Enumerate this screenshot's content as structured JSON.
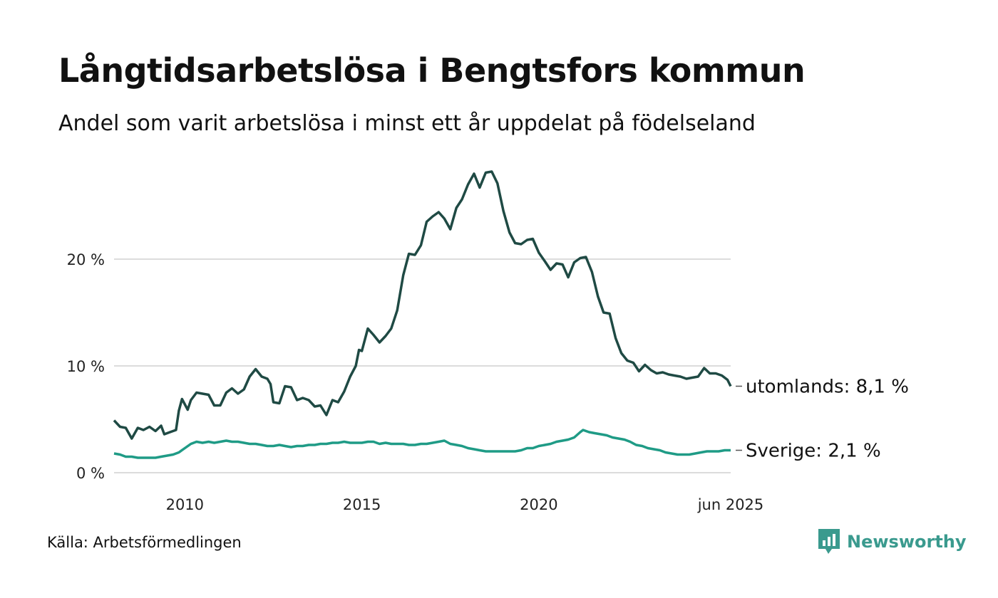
{
  "header": {
    "title": "Långtidsarbetslösa i Bengtsfors kommun",
    "subtitle": "Andel som varit arbetslösa i minst ett år uppdelat på födelseland"
  },
  "footer": {
    "source": "Källa: Arbetsförmedlingen",
    "brand": "Newsworthy",
    "brand_color": "#3a9a8e"
  },
  "chart_data": {
    "type": "line",
    "title": "Långtidsarbetslösa i Bengtsfors kommun",
    "subtitle": "Andel som varit arbetslösa i minst ett år uppdelat på födelseland",
    "x_ticks": [
      {
        "x": 2010,
        "label": "2010"
      },
      {
        "x": 2015,
        "label": "2015"
      },
      {
        "x": 2020,
        "label": "2020"
      },
      {
        "x": 2025.42,
        "label": "jun 2025"
      }
    ],
    "y_ticks": [
      {
        "y": 0,
        "label": "0 %"
      },
      {
        "y": 10,
        "label": "10 %"
      },
      {
        "y": 20,
        "label": "20 %"
      }
    ],
    "xlim": [
      2008.0,
      2025.42
    ],
    "ylim": [
      0,
      30
    ],
    "grid": true,
    "legend": "end-labels",
    "series": [
      {
        "name": "utomlands",
        "end_label": "utomlands: 8,1 %",
        "color": "#1f4a44",
        "points": [
          [
            2008.0,
            4.9
          ],
          [
            2008.17,
            4.3
          ],
          [
            2008.33,
            4.2
          ],
          [
            2008.5,
            3.2
          ],
          [
            2008.67,
            4.2
          ],
          [
            2008.83,
            4.0
          ],
          [
            2009.0,
            4.3
          ],
          [
            2009.17,
            3.9
          ],
          [
            2009.33,
            4.4
          ],
          [
            2009.42,
            3.6
          ],
          [
            2009.58,
            3.8
          ],
          [
            2009.75,
            4.0
          ],
          [
            2009.83,
            5.8
          ],
          [
            2009.92,
            6.9
          ],
          [
            2010.08,
            5.9
          ],
          [
            2010.17,
            6.8
          ],
          [
            2010.33,
            7.5
          ],
          [
            2010.5,
            7.4
          ],
          [
            2010.67,
            7.3
          ],
          [
            2010.83,
            6.3
          ],
          [
            2011.0,
            6.3
          ],
          [
            2011.17,
            7.5
          ],
          [
            2011.33,
            7.9
          ],
          [
            2011.5,
            7.4
          ],
          [
            2011.67,
            7.8
          ],
          [
            2011.83,
            9.0
          ],
          [
            2012.0,
            9.7
          ],
          [
            2012.17,
            9.0
          ],
          [
            2012.33,
            8.8
          ],
          [
            2012.42,
            8.3
          ],
          [
            2012.5,
            6.6
          ],
          [
            2012.67,
            6.5
          ],
          [
            2012.83,
            8.1
          ],
          [
            2013.0,
            8.0
          ],
          [
            2013.17,
            6.8
          ],
          [
            2013.33,
            7.0
          ],
          [
            2013.5,
            6.8
          ],
          [
            2013.67,
            6.2
          ],
          [
            2013.83,
            6.3
          ],
          [
            2014.0,
            5.4
          ],
          [
            2014.17,
            6.8
          ],
          [
            2014.33,
            6.6
          ],
          [
            2014.5,
            7.6
          ],
          [
            2014.67,
            9.0
          ],
          [
            2014.83,
            10.0
          ],
          [
            2014.92,
            11.5
          ],
          [
            2015.0,
            11.4
          ],
          [
            2015.17,
            13.5
          ],
          [
            2015.33,
            12.9
          ],
          [
            2015.5,
            12.2
          ],
          [
            2015.67,
            12.8
          ],
          [
            2015.83,
            13.5
          ],
          [
            2016.0,
            15.2
          ],
          [
            2016.17,
            18.5
          ],
          [
            2016.33,
            20.5
          ],
          [
            2016.5,
            20.4
          ],
          [
            2016.67,
            21.3
          ],
          [
            2016.83,
            23.5
          ],
          [
            2017.0,
            24.0
          ],
          [
            2017.17,
            24.4
          ],
          [
            2017.33,
            23.8
          ],
          [
            2017.5,
            22.8
          ],
          [
            2017.67,
            24.8
          ],
          [
            2017.83,
            25.6
          ],
          [
            2018.0,
            27.0
          ],
          [
            2018.17,
            28.0
          ],
          [
            2018.33,
            26.7
          ],
          [
            2018.5,
            28.1
          ],
          [
            2018.67,
            28.2
          ],
          [
            2018.83,
            27.1
          ],
          [
            2019.0,
            24.5
          ],
          [
            2019.17,
            22.5
          ],
          [
            2019.33,
            21.5
          ],
          [
            2019.5,
            21.4
          ],
          [
            2019.67,
            21.8
          ],
          [
            2019.83,
            21.9
          ],
          [
            2020.0,
            20.6
          ],
          [
            2020.17,
            19.8
          ],
          [
            2020.33,
            19.0
          ],
          [
            2020.5,
            19.6
          ],
          [
            2020.67,
            19.5
          ],
          [
            2020.83,
            18.3
          ],
          [
            2021.0,
            19.7
          ],
          [
            2021.17,
            20.1
          ],
          [
            2021.33,
            20.2
          ],
          [
            2021.5,
            18.8
          ],
          [
            2021.67,
            16.5
          ],
          [
            2021.83,
            15.0
          ],
          [
            2022.0,
            14.9
          ],
          [
            2022.17,
            12.6
          ],
          [
            2022.33,
            11.2
          ],
          [
            2022.5,
            10.5
          ],
          [
            2022.67,
            10.3
          ],
          [
            2022.83,
            9.5
          ],
          [
            2023.0,
            10.1
          ],
          [
            2023.17,
            9.6
          ],
          [
            2023.33,
            9.3
          ],
          [
            2023.5,
            9.4
          ],
          [
            2023.67,
            9.2
          ],
          [
            2023.83,
            9.1
          ],
          [
            2024.0,
            9.0
          ],
          [
            2024.17,
            8.8
          ],
          [
            2024.33,
            8.9
          ],
          [
            2024.5,
            9.0
          ],
          [
            2024.67,
            9.8
          ],
          [
            2024.83,
            9.3
          ],
          [
            2025.0,
            9.3
          ],
          [
            2025.17,
            9.1
          ],
          [
            2025.33,
            8.7
          ],
          [
            2025.42,
            8.1
          ]
        ]
      },
      {
        "name": "Sverige",
        "end_label": "Sverige: 2,1 %",
        "color": "#1f9b86",
        "points": [
          [
            2008.0,
            1.8
          ],
          [
            2008.17,
            1.7
          ],
          [
            2008.33,
            1.5
          ],
          [
            2008.5,
            1.5
          ],
          [
            2008.67,
            1.4
          ],
          [
            2008.83,
            1.4
          ],
          [
            2009.0,
            1.4
          ],
          [
            2009.17,
            1.4
          ],
          [
            2009.33,
            1.5
          ],
          [
            2009.5,
            1.6
          ],
          [
            2009.67,
            1.7
          ],
          [
            2009.83,
            1.9
          ],
          [
            2010.0,
            2.3
          ],
          [
            2010.17,
            2.7
          ],
          [
            2010.33,
            2.9
          ],
          [
            2010.5,
            2.8
          ],
          [
            2010.67,
            2.9
          ],
          [
            2010.83,
            2.8
          ],
          [
            2011.0,
            2.9
          ],
          [
            2011.17,
            3.0
          ],
          [
            2011.33,
            2.9
          ],
          [
            2011.5,
            2.9
          ],
          [
            2011.67,
            2.8
          ],
          [
            2011.83,
            2.7
          ],
          [
            2012.0,
            2.7
          ],
          [
            2012.17,
            2.6
          ],
          [
            2012.33,
            2.5
          ],
          [
            2012.5,
            2.5
          ],
          [
            2012.67,
            2.6
          ],
          [
            2012.83,
            2.5
          ],
          [
            2013.0,
            2.4
          ],
          [
            2013.17,
            2.5
          ],
          [
            2013.33,
            2.5
          ],
          [
            2013.5,
            2.6
          ],
          [
            2013.67,
            2.6
          ],
          [
            2013.83,
            2.7
          ],
          [
            2014.0,
            2.7
          ],
          [
            2014.17,
            2.8
          ],
          [
            2014.33,
            2.8
          ],
          [
            2014.5,
            2.9
          ],
          [
            2014.67,
            2.8
          ],
          [
            2014.83,
            2.8
          ],
          [
            2015.0,
            2.8
          ],
          [
            2015.17,
            2.9
          ],
          [
            2015.33,
            2.9
          ],
          [
            2015.5,
            2.7
          ],
          [
            2015.67,
            2.8
          ],
          [
            2015.83,
            2.7
          ],
          [
            2016.0,
            2.7
          ],
          [
            2016.17,
            2.7
          ],
          [
            2016.33,
            2.6
          ],
          [
            2016.5,
            2.6
          ],
          [
            2016.67,
            2.7
          ],
          [
            2016.83,
            2.7
          ],
          [
            2017.0,
            2.8
          ],
          [
            2017.17,
            2.9
          ],
          [
            2017.33,
            3.0
          ],
          [
            2017.5,
            2.7
          ],
          [
            2017.67,
            2.6
          ],
          [
            2017.83,
            2.5
          ],
          [
            2018.0,
            2.3
          ],
          [
            2018.17,
            2.2
          ],
          [
            2018.33,
            2.1
          ],
          [
            2018.5,
            2.0
          ],
          [
            2018.67,
            2.0
          ],
          [
            2018.83,
            2.0
          ],
          [
            2019.0,
            2.0
          ],
          [
            2019.17,
            2.0
          ],
          [
            2019.33,
            2.0
          ],
          [
            2019.5,
            2.1
          ],
          [
            2019.67,
            2.3
          ],
          [
            2019.83,
            2.3
          ],
          [
            2020.0,
            2.5
          ],
          [
            2020.17,
            2.6
          ],
          [
            2020.33,
            2.7
          ],
          [
            2020.5,
            2.9
          ],
          [
            2020.67,
            3.0
          ],
          [
            2020.83,
            3.1
          ],
          [
            2021.0,
            3.3
          ],
          [
            2021.17,
            3.8
          ],
          [
            2021.25,
            4.0
          ],
          [
            2021.42,
            3.8
          ],
          [
            2021.58,
            3.7
          ],
          [
            2021.75,
            3.6
          ],
          [
            2021.92,
            3.5
          ],
          [
            2022.08,
            3.3
          ],
          [
            2022.25,
            3.2
          ],
          [
            2022.42,
            3.1
          ],
          [
            2022.58,
            2.9
          ],
          [
            2022.75,
            2.6
          ],
          [
            2022.92,
            2.5
          ],
          [
            2023.08,
            2.3
          ],
          [
            2023.25,
            2.2
          ],
          [
            2023.42,
            2.1
          ],
          [
            2023.58,
            1.9
          ],
          [
            2023.75,
            1.8
          ],
          [
            2023.92,
            1.7
          ],
          [
            2024.08,
            1.7
          ],
          [
            2024.25,
            1.7
          ],
          [
            2024.42,
            1.8
          ],
          [
            2024.58,
            1.9
          ],
          [
            2024.75,
            2.0
          ],
          [
            2024.92,
            2.0
          ],
          [
            2025.08,
            2.0
          ],
          [
            2025.25,
            2.1
          ],
          [
            2025.42,
            2.1
          ]
        ]
      }
    ]
  }
}
